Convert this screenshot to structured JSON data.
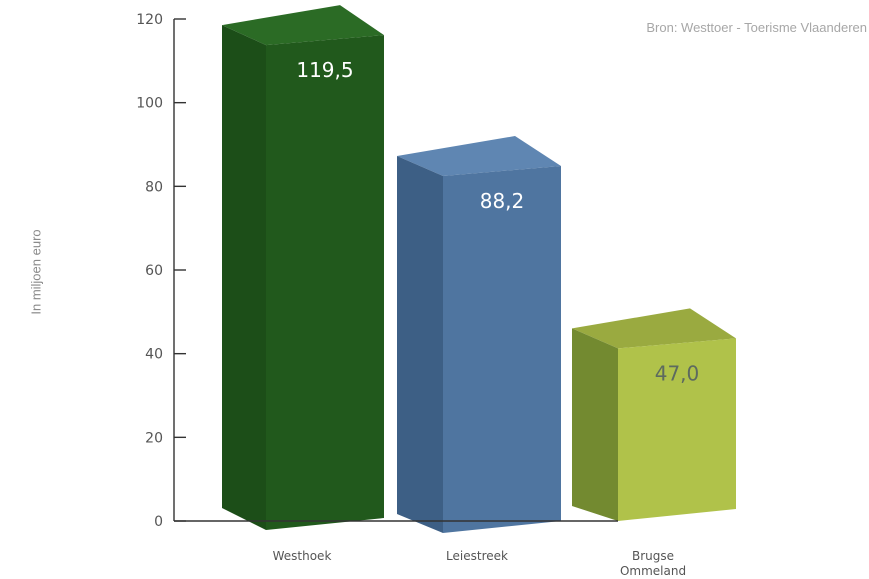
{
  "source": "Bron: Westtoer - Toerisme Vlaanderen",
  "chart_data": {
    "type": "bar",
    "categories": [
      "Westhoek",
      "Leiestreek",
      "Brugse Ommeland"
    ],
    "values": [
      119.5,
      88.2,
      47.0
    ],
    "value_labels": [
      "119,5",
      "88,2",
      "47,0"
    ],
    "title": "",
    "xlabel": "",
    "ylabel": "In miljoen euro",
    "ylim": [
      0,
      120
    ],
    "yticks": [
      0,
      20,
      40,
      60,
      80,
      100,
      120
    ],
    "grid": false,
    "colors": {
      "bars": [
        {
          "front": "#21591c",
          "side": "#1c4e18",
          "top": "#2b6b25",
          "label": "#ffffff"
        },
        {
          "front": "#4f75a0",
          "side": "#3d5f85",
          "top": "#5f86b2",
          "label": "#ffffff"
        },
        {
          "front": "#b0c24a",
          "side": "#738a30",
          "top": "#9aaa40",
          "label": "#5d6a5f"
        }
      ],
      "axis": "#333333"
    }
  }
}
